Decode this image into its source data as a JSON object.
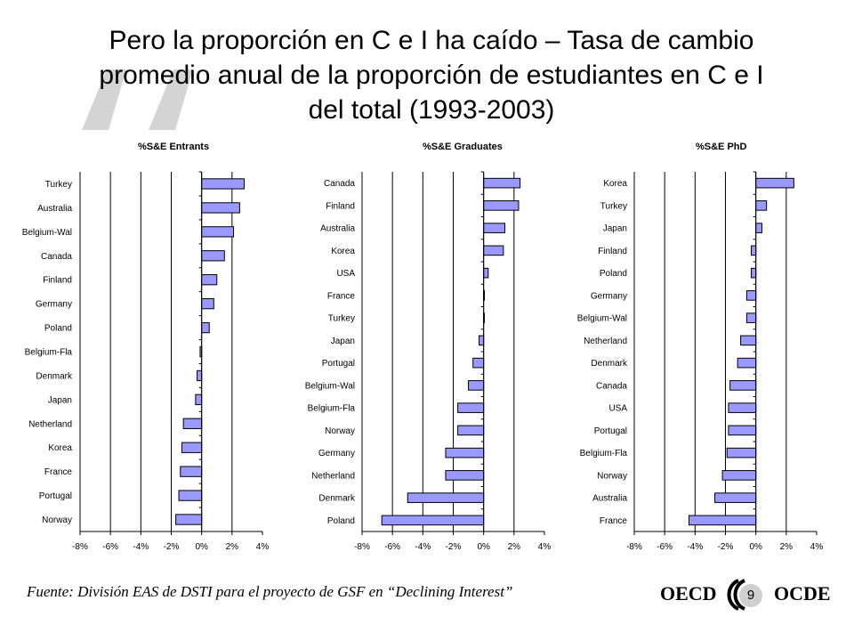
{
  "slide": {
    "title_lines": [
      "Pero la proporción en C e I ha caído – Tasa de cambio",
      "promedio anual de la proporción de estudiantes en C e I",
      "del total (1993-2003)"
    ],
    "source": "Fuente: División EAS  de DSTI para el proyecto de GSF en “Declining Interest”",
    "page_number": "9",
    "logo_left": "OECD",
    "logo_right": "OCDE"
  },
  "colors": {
    "bar_fill": "#9999ff",
    "bar_stroke": "#000000",
    "grid": "#000000"
  },
  "chart_data": [
    {
      "type": "bar",
      "orientation": "horizontal",
      "title": "%S&E Entrants",
      "categories": [
        "Turkey",
        "Australia",
        "Belgium-Wal",
        "Canada",
        "Finland",
        "Germany",
        "Poland",
        "Belgium-Fla",
        "Denmark",
        "Japan",
        "Netherland",
        "Korea",
        "France",
        "Portugal",
        "Norway"
      ],
      "values": [
        2.8,
        2.5,
        2.1,
        1.5,
        1.0,
        0.8,
        0.5,
        -0.1,
        -0.3,
        -0.4,
        -1.2,
        -1.3,
        -1.4,
        -1.5,
        -1.7
      ],
      "xlim": [
        -8,
        4
      ],
      "xticks": [
        "-8%",
        "-6%",
        "-4%",
        "-2%",
        "0%",
        "2%",
        "4%"
      ],
      "grid": true
    },
    {
      "type": "bar",
      "orientation": "horizontal",
      "title": "%S&E Graduates",
      "categories": [
        "Canada",
        "Finland",
        "Australia",
        "Korea",
        "USA",
        "France",
        "Turkey",
        "Japan",
        "Portugal",
        "Belgium-Wal",
        "Belgium-Fla",
        "Norway",
        "Germany",
        "Netherland",
        "Denmark",
        "Poland"
      ],
      "values": [
        2.4,
        2.3,
        1.4,
        1.3,
        0.3,
        0.05,
        0.0,
        -0.3,
        -0.7,
        -1.0,
        -1.7,
        -1.7,
        -2.5,
        -2.5,
        -5.0,
        -6.7
      ],
      "xlim": [
        -8,
        4
      ],
      "xticks": [
        "-8%",
        "-6%",
        "-4%",
        "-2%",
        "0%",
        "2%",
        "4%"
      ],
      "grid": true
    },
    {
      "type": "bar",
      "orientation": "horizontal",
      "title": "%S&E PhD",
      "categories": [
        "Korea",
        "Turkey",
        "Japan",
        "Finland",
        "Poland",
        "Germany",
        "Belgium-Wal",
        "Netherland",
        "Denmark",
        "Canada",
        "USA",
        "Portugal",
        "Belgium-Fla",
        "Norway",
        "Australia",
        "France"
      ],
      "values": [
        2.5,
        0.7,
        0.4,
        -0.3,
        -0.3,
        -0.6,
        -0.6,
        -1.0,
        -1.2,
        -1.7,
        -1.8,
        -1.8,
        -1.9,
        -2.2,
        -2.7,
        -4.4
      ],
      "xlim": [
        -8,
        4
      ],
      "xticks": [
        "-8%",
        "-6%",
        "-4%",
        "-2%",
        "0%",
        "2%",
        "4%"
      ],
      "grid": true
    }
  ]
}
